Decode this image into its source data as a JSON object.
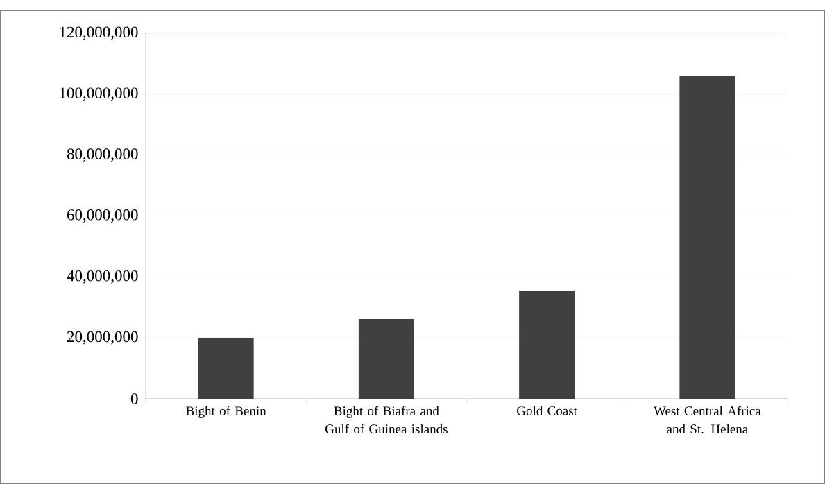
{
  "chart_data": {
    "type": "bar",
    "categories": [
      "Bight of Benin",
      "Bight of Biafra and Gulf of Guinea islands",
      "Gold Coast",
      "West Central Africa and St. Helena"
    ],
    "values": [
      20000000,
      26200000,
      35500000,
      106000000
    ],
    "color": "#404040",
    "ylim": [
      0,
      120000000
    ],
    "yticks": [
      {
        "value": 0,
        "label": "0"
      },
      {
        "value": 20000000,
        "label": "20,000,000"
      },
      {
        "value": 40000000,
        "label": "40,000,000"
      },
      {
        "value": 60000000,
        "label": "60,000,000"
      },
      {
        "value": 80000000,
        "label": "80,000,000"
      },
      {
        "value": 100000000,
        "label": "100,000,000"
      },
      {
        "value": 120000000,
        "label": "120,000,000"
      }
    ],
    "grid": "y"
  }
}
